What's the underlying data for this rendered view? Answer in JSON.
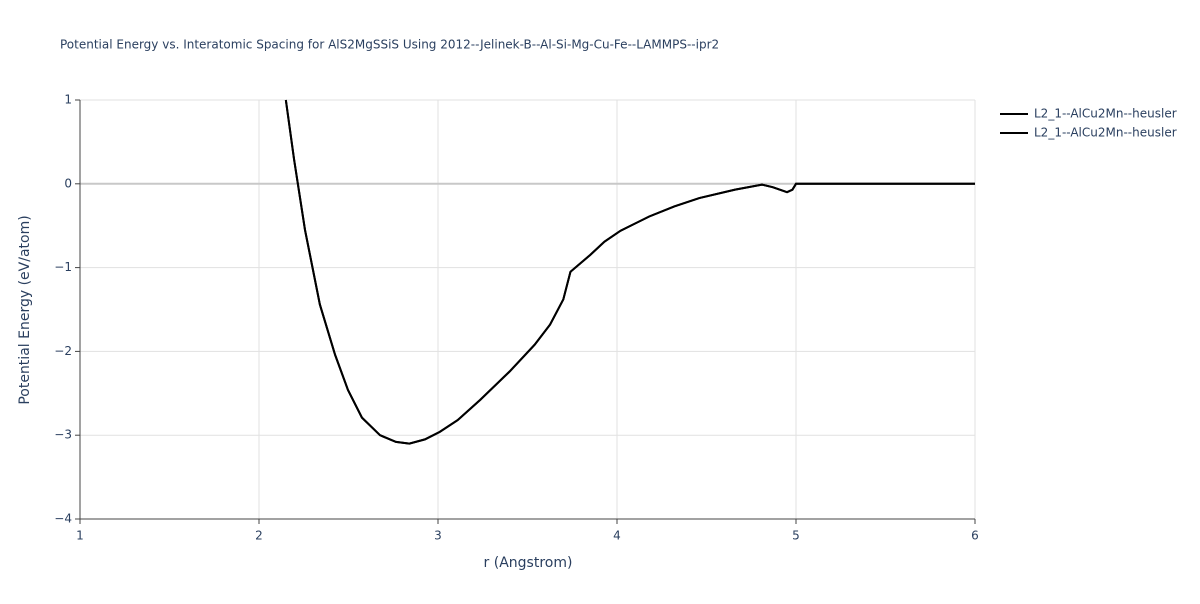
{
  "chart_data": {
    "type": "line",
    "title": "Potential Energy vs. Interatomic Spacing for AlS2MgSSiS Using 2012--Jelinek-B--Al-Si-Mg-Cu-Fe--LAMMPS--ipr2",
    "xlabel": "r (Angstrom)",
    "ylabel": "Potential Energy (eV/atom)",
    "x": [
      2.15,
      2.196,
      2.257,
      2.34,
      2.425,
      2.497,
      2.575,
      2.676,
      2.765,
      2.84,
      2.927,
      3.01,
      3.11,
      3.235,
      3.4,
      3.54,
      3.626,
      3.7,
      3.74,
      3.85,
      3.93,
      4.02,
      4.18,
      4.32,
      4.46,
      4.66,
      4.81,
      4.87,
      4.95,
      4.98,
      5.0,
      6.0
    ],
    "series": [
      {
        "name": "L2_1--AlCu2Mn--heusler",
        "color": "#000000",
        "values": [
          1,
          0.29,
          -0.55,
          -1.44,
          -2.04,
          -2.46,
          -2.79,
          -3.0,
          -3.08,
          -3.1,
          -3.05,
          -2.96,
          -2.82,
          -2.58,
          -2.24,
          -1.92,
          -1.68,
          -1.38,
          -1.05,
          -0.85,
          -0.69,
          -0.56,
          -0.39,
          -0.27,
          -0.17,
          -0.07,
          -0.01,
          -0.04,
          -0.1,
          -0.07,
          0,
          0
        ]
      },
      {
        "name": "L2_1--AlCu2Mn--heusler",
        "color": "#000000",
        "values": [
          1,
          0.29,
          -0.55,
          -1.44,
          -2.04,
          -2.46,
          -2.79,
          -3.0,
          -3.08,
          -3.1,
          -3.05,
          -2.96,
          -2.82,
          -2.58,
          -2.24,
          -1.92,
          -1.68,
          -1.38,
          -1.05,
          -0.85,
          -0.69,
          -0.56,
          -0.39,
          -0.27,
          -0.17,
          -0.07,
          -0.01,
          -0.04,
          -0.1,
          -0.07,
          0,
          0
        ]
      }
    ],
    "xlim": [
      1,
      6
    ],
    "xticks": [
      1,
      2,
      3,
      4,
      5,
      6
    ],
    "ylim": [
      -4,
      1
    ],
    "yticks": [
      {
        "value": -4,
        "label": "−4"
      },
      {
        "value": -3,
        "label": "−3"
      },
      {
        "value": -2,
        "label": "−2"
      },
      {
        "value": -1,
        "label": "−1"
      },
      0,
      1
    ],
    "grid": true
  }
}
